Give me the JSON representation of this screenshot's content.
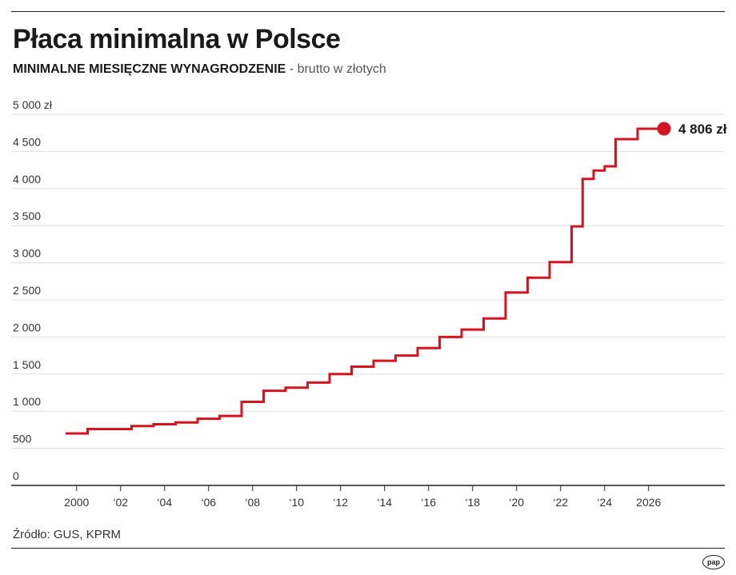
{
  "title": "Płaca minimalna w Polsce",
  "subtitle_main": "MINIMALNE MIESIĘCZNE WYNAGRODZENIE",
  "subtitle_rest": " - brutto w złotych",
  "source": "Źródło: GUS, KPRM",
  "logo_text": "pap",
  "colors": {
    "line": "#d4141f",
    "grid": "#dddddd",
    "axis": "#222222"
  },
  "chart_data": {
    "type": "line",
    "title": "Płaca minimalna w Polsce",
    "subtitle": "MINIMALNE MIESIĘCZNE WYNAGRODZENIE - brutto w złotych",
    "xlabel": "",
    "ylabel": "",
    "ylim": [
      0,
      5000
    ],
    "xlim": [
      1999.5,
      2027.5
    ],
    "y_ticks": [
      0,
      500,
      1000,
      1500,
      2000,
      2500,
      3000,
      3500,
      4000,
      4500,
      5000
    ],
    "y_tick_labels": [
      "0",
      "500",
      "1 000",
      "1 500",
      "2 000",
      "2 500",
      "3 000",
      "3 500",
      "4 000",
      "4 500",
      "5 000 zł"
    ],
    "x_ticks": [
      2000,
      2002,
      2004,
      2006,
      2008,
      2010,
      2012,
      2014,
      2016,
      2018,
      2020,
      2022,
      2024,
      2026
    ],
    "x_tick_labels": [
      "2000",
      "‘02",
      "‘04",
      "‘06",
      "‘08",
      "‘10",
      "‘12",
      "‘14",
      "‘16",
      "‘18",
      "‘20",
      "‘22",
      "‘24",
      "2026"
    ],
    "grid": true,
    "series": [
      {
        "step": true,
        "points": [
          {
            "x": 2000.0,
            "y": 700
          },
          {
            "x": 2001.0,
            "y": 760
          },
          {
            "x": 2002.0,
            "y": 760
          },
          {
            "x": 2003.0,
            "y": 800
          },
          {
            "x": 2004.0,
            "y": 824
          },
          {
            "x": 2005.0,
            "y": 849
          },
          {
            "x": 2006.0,
            "y": 899
          },
          {
            "x": 2007.0,
            "y": 936
          },
          {
            "x": 2008.0,
            "y": 1126
          },
          {
            "x": 2009.0,
            "y": 1276
          },
          {
            "x": 2010.0,
            "y": 1317
          },
          {
            "x": 2011.0,
            "y": 1386
          },
          {
            "x": 2012.0,
            "y": 1500
          },
          {
            "x": 2013.0,
            "y": 1600
          },
          {
            "x": 2014.0,
            "y": 1680
          },
          {
            "x": 2015.0,
            "y": 1750
          },
          {
            "x": 2016.0,
            "y": 1850
          },
          {
            "x": 2017.0,
            "y": 2000
          },
          {
            "x": 2018.0,
            "y": 2100
          },
          {
            "x": 2019.0,
            "y": 2250
          },
          {
            "x": 2020.0,
            "y": 2600
          },
          {
            "x": 2021.0,
            "y": 2800
          },
          {
            "x": 2022.0,
            "y": 3010
          },
          {
            "x": 2023.0,
            "y": 3490
          },
          {
            "x": 2023.5,
            "y": 4130
          },
          {
            "x": 2024.0,
            "y": 4242
          },
          {
            "x": 2024.5,
            "y": 4300
          },
          {
            "x": 2025.0,
            "y": 4666
          },
          {
            "x": 2026.0,
            "y": 4806
          }
        ]
      }
    ],
    "end_point": {
      "x": 2026.7,
      "y": 4806
    },
    "annotations": [
      {
        "text": "4 806 zł",
        "x": 2026.7,
        "y": 4806
      }
    ]
  }
}
